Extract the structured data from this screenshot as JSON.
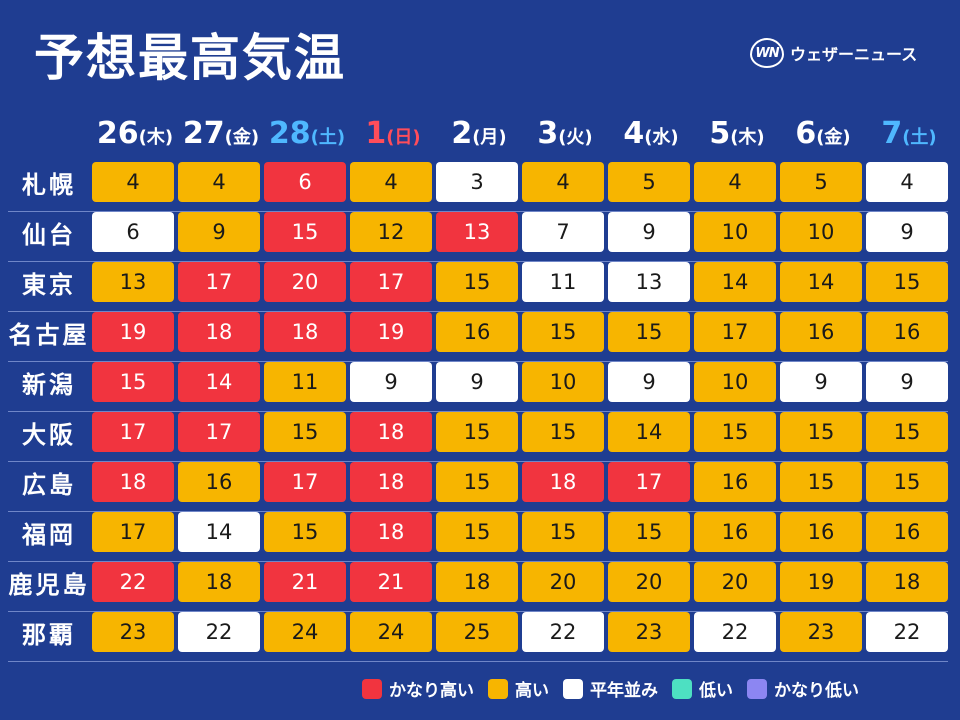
{
  "title": "予想最高気温",
  "brand": {
    "mark": "WN",
    "name": "ウェザーニュース"
  },
  "colors": {
    "vhigh": "#f1343f",
    "high": "#f7b500",
    "normal": "#ffffff",
    "low": "#4de0c2",
    "vlow": "#8c86f2",
    "background": "#1f3d91",
    "saturday": "#4fb8ff",
    "sunday": "#ff4d5a"
  },
  "dates": [
    {
      "day": "26",
      "weekday": "(木)",
      "type": "weekday"
    },
    {
      "day": "27",
      "weekday": "(金)",
      "type": "weekday"
    },
    {
      "day": "28",
      "weekday": "(土)",
      "type": "sat"
    },
    {
      "day": "1",
      "weekday": "(日)",
      "type": "sun"
    },
    {
      "day": "2",
      "weekday": "(月)",
      "type": "weekday"
    },
    {
      "day": "3",
      "weekday": "(火)",
      "type": "weekday"
    },
    {
      "day": "4",
      "weekday": "(水)",
      "type": "weekday"
    },
    {
      "day": "5",
      "weekday": "(木)",
      "type": "weekday"
    },
    {
      "day": "6",
      "weekday": "(金)",
      "type": "weekday"
    },
    {
      "day": "7",
      "weekday": "(土)",
      "type": "sat"
    }
  ],
  "cities": [
    {
      "name": "札幌",
      "values": [
        "4",
        "4",
        "6",
        "4",
        "3",
        "4",
        "5",
        "4",
        "5",
        "4"
      ],
      "levels": [
        "high",
        "high",
        "vhigh",
        "high",
        "normal",
        "high",
        "high",
        "high",
        "high",
        "normal"
      ]
    },
    {
      "name": "仙台",
      "values": [
        "6",
        "9",
        "15",
        "12",
        "13",
        "7",
        "9",
        "10",
        "10",
        "9"
      ],
      "levels": [
        "normal",
        "high",
        "vhigh",
        "high",
        "vhigh",
        "normal",
        "normal",
        "high",
        "high",
        "normal"
      ]
    },
    {
      "name": "東京",
      "values": [
        "13",
        "17",
        "20",
        "17",
        "15",
        "11",
        "13",
        "14",
        "14",
        "15"
      ],
      "levels": [
        "high",
        "vhigh",
        "vhigh",
        "vhigh",
        "high",
        "normal",
        "normal",
        "high",
        "high",
        "high"
      ]
    },
    {
      "name": "名古屋",
      "values": [
        "19",
        "18",
        "18",
        "19",
        "16",
        "15",
        "15",
        "17",
        "16",
        "16"
      ],
      "levels": [
        "vhigh",
        "vhigh",
        "vhigh",
        "vhigh",
        "high",
        "high",
        "high",
        "high",
        "high",
        "high"
      ]
    },
    {
      "name": "新潟",
      "values": [
        "15",
        "14",
        "11",
        "9",
        "9",
        "10",
        "9",
        "10",
        "9",
        "9"
      ],
      "levels": [
        "vhigh",
        "vhigh",
        "high",
        "normal",
        "normal",
        "high",
        "normal",
        "high",
        "normal",
        "normal"
      ]
    },
    {
      "name": "大阪",
      "values": [
        "17",
        "17",
        "15",
        "18",
        "15",
        "15",
        "14",
        "15",
        "15",
        "15"
      ],
      "levels": [
        "vhigh",
        "vhigh",
        "high",
        "vhigh",
        "high",
        "high",
        "high",
        "high",
        "high",
        "high"
      ]
    },
    {
      "name": "広島",
      "values": [
        "18",
        "16",
        "17",
        "18",
        "15",
        "18",
        "17",
        "16",
        "15",
        "15"
      ],
      "levels": [
        "vhigh",
        "high",
        "vhigh",
        "vhigh",
        "high",
        "vhigh",
        "vhigh",
        "high",
        "high",
        "high"
      ]
    },
    {
      "name": "福岡",
      "values": [
        "17",
        "14",
        "15",
        "18",
        "15",
        "15",
        "15",
        "16",
        "16",
        "16"
      ],
      "levels": [
        "high",
        "normal",
        "high",
        "vhigh",
        "high",
        "high",
        "high",
        "high",
        "high",
        "high"
      ]
    },
    {
      "name": "鹿児島",
      "values": [
        "22",
        "18",
        "21",
        "21",
        "18",
        "20",
        "20",
        "20",
        "19",
        "18"
      ],
      "levels": [
        "vhigh",
        "high",
        "vhigh",
        "vhigh",
        "high",
        "high",
        "high",
        "high",
        "high",
        "high"
      ]
    },
    {
      "name": "那覇",
      "values": [
        "23",
        "22",
        "24",
        "24",
        "25",
        "22",
        "23",
        "22",
        "23",
        "22"
      ],
      "levels": [
        "high",
        "normal",
        "high",
        "high",
        "high",
        "normal",
        "high",
        "normal",
        "high",
        "normal"
      ]
    }
  ],
  "legend": [
    {
      "label": "かなり高い",
      "level": "vhigh"
    },
    {
      "label": "高い",
      "level": "high"
    },
    {
      "label": "平年並み",
      "level": "normal"
    },
    {
      "label": "低い",
      "level": "low"
    },
    {
      "label": "かなり低い",
      "level": "vlow"
    }
  ]
}
